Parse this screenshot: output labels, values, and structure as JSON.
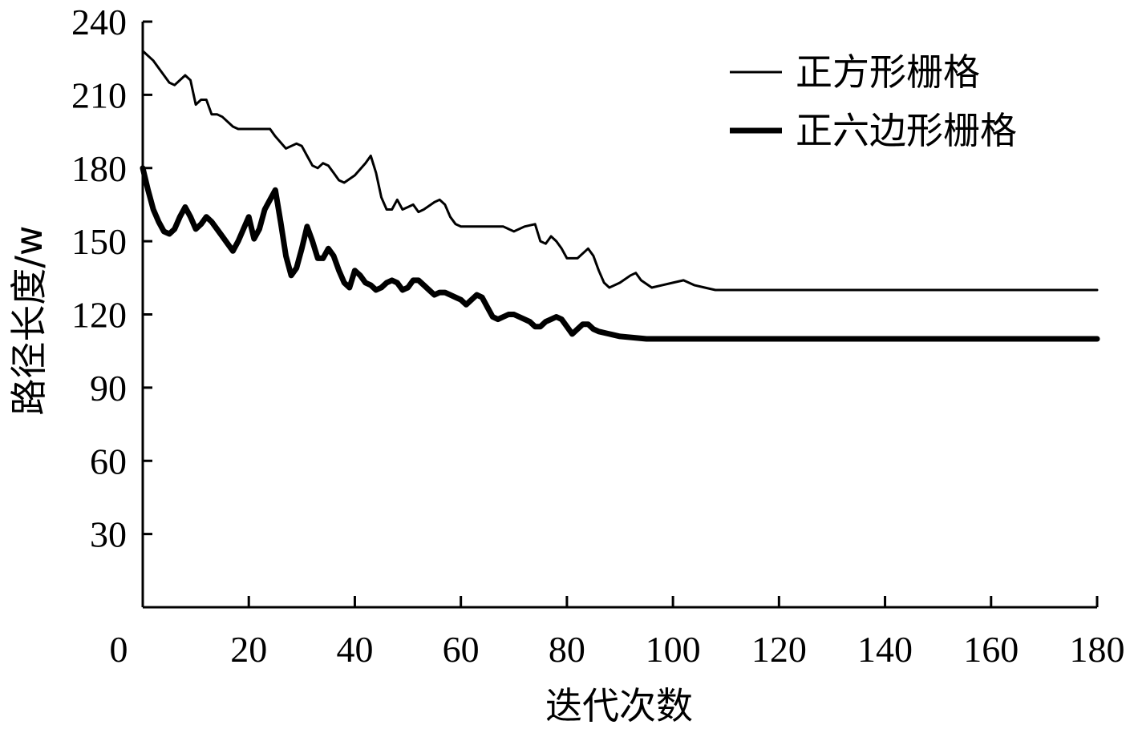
{
  "chart_data": {
    "type": "line",
    "title": "",
    "xlabel": "迭代次数",
    "ylabel": "路径长度/w",
    "xlim": [
      0,
      180
    ],
    "ylim": [
      0,
      240
    ],
    "xticks": [
      0,
      20,
      40,
      60,
      80,
      100,
      120,
      140,
      160,
      180
    ],
    "yticks": [
      30,
      60,
      90,
      120,
      150,
      180,
      210,
      240
    ],
    "xtick_labels": [
      "0",
      "20",
      "40",
      "60",
      "80",
      "100",
      "120",
      "140",
      "160",
      "180"
    ],
    "ytick_labels": [
      "30",
      "60",
      "90",
      "120",
      "150",
      "180",
      "210",
      "240"
    ],
    "grid": false,
    "legend_position": "top-right",
    "series": [
      {
        "name": "正方形栅格",
        "style": "thin",
        "color": "#000000",
        "points": [
          [
            0,
            228
          ],
          [
            2,
            224
          ],
          [
            3,
            221
          ],
          [
            5,
            215
          ],
          [
            6,
            214
          ],
          [
            8,
            218
          ],
          [
            9,
            216
          ],
          [
            10,
            206
          ],
          [
            11,
            208
          ],
          [
            12,
            208
          ],
          [
            13,
            202
          ],
          [
            14,
            202
          ],
          [
            15,
            201
          ],
          [
            17,
            197
          ],
          [
            18,
            196
          ],
          [
            24,
            196
          ],
          [
            25,
            193
          ],
          [
            27,
            188
          ],
          [
            28,
            189
          ],
          [
            29,
            190
          ],
          [
            30,
            189
          ],
          [
            31,
            185
          ],
          [
            32,
            181
          ],
          [
            33,
            180
          ],
          [
            34,
            182
          ],
          [
            35,
            181
          ],
          [
            36,
            178
          ],
          [
            37,
            175
          ],
          [
            38,
            174
          ],
          [
            40,
            177
          ],
          [
            42,
            182
          ],
          [
            43,
            185
          ],
          [
            44,
            178
          ],
          [
            45,
            168
          ],
          [
            46,
            163
          ],
          [
            47,
            163
          ],
          [
            48,
            167
          ],
          [
            49,
            163
          ],
          [
            50,
            164
          ],
          [
            51,
            165
          ],
          [
            52,
            162
          ],
          [
            53,
            163
          ],
          [
            55,
            166
          ],
          [
            56,
            167
          ],
          [
            57,
            165
          ],
          [
            58,
            160
          ],
          [
            59,
            157
          ],
          [
            60,
            156
          ],
          [
            68,
            156
          ],
          [
            70,
            154
          ],
          [
            72,
            156
          ],
          [
            74,
            157
          ],
          [
            75,
            150
          ],
          [
            76,
            149
          ],
          [
            77,
            152
          ],
          [
            78,
            150
          ],
          [
            79,
            147
          ],
          [
            80,
            143
          ],
          [
            82,
            143
          ],
          [
            84,
            147
          ],
          [
            85,
            144
          ],
          [
            86,
            138
          ],
          [
            87,
            133
          ],
          [
            88,
            131
          ],
          [
            90,
            133
          ],
          [
            92,
            136
          ],
          [
            93,
            137
          ],
          [
            94,
            134
          ],
          [
            96,
            131
          ],
          [
            98,
            132
          ],
          [
            100,
            133
          ],
          [
            102,
            134
          ],
          [
            104,
            132
          ],
          [
            106,
            131
          ],
          [
            108,
            130
          ],
          [
            180,
            130
          ]
        ]
      },
      {
        "name": "正六边形栅格",
        "style": "thick",
        "color": "#000000",
        "points": [
          [
            0,
            180
          ],
          [
            1,
            171
          ],
          [
            2,
            163
          ],
          [
            3,
            158
          ],
          [
            4,
            154
          ],
          [
            5,
            153
          ],
          [
            6,
            155
          ],
          [
            7,
            160
          ],
          [
            8,
            164
          ],
          [
            9,
            160
          ],
          [
            10,
            155
          ],
          [
            11,
            157
          ],
          [
            12,
            160
          ],
          [
            13,
            158
          ],
          [
            15,
            152
          ],
          [
            16,
            149
          ],
          [
            17,
            146
          ],
          [
            18,
            150
          ],
          [
            19,
            155
          ],
          [
            20,
            160
          ],
          [
            21,
            151
          ],
          [
            22,
            155
          ],
          [
            23,
            163
          ],
          [
            24,
            167
          ],
          [
            25,
            171
          ],
          [
            26,
            158
          ],
          [
            27,
            144
          ],
          [
            28,
            136
          ],
          [
            29,
            139
          ],
          [
            30,
            147
          ],
          [
            31,
            156
          ],
          [
            32,
            150
          ],
          [
            33,
            143
          ],
          [
            34,
            143
          ],
          [
            35,
            147
          ],
          [
            36,
            144
          ],
          [
            37,
            138
          ],
          [
            38,
            133
          ],
          [
            39,
            131
          ],
          [
            40,
            138
          ],
          [
            41,
            136
          ],
          [
            42,
            133
          ],
          [
            43,
            132
          ],
          [
            44,
            130
          ],
          [
            45,
            131
          ],
          [
            46,
            133
          ],
          [
            47,
            134
          ],
          [
            48,
            133
          ],
          [
            49,
            130
          ],
          [
            50,
            131
          ],
          [
            51,
            134
          ],
          [
            52,
            134
          ],
          [
            53,
            132
          ],
          [
            54,
            130
          ],
          [
            55,
            128
          ],
          [
            56,
            129
          ],
          [
            57,
            129
          ],
          [
            58,
            128
          ],
          [
            59,
            127
          ],
          [
            60,
            126
          ],
          [
            61,
            124
          ],
          [
            62,
            126
          ],
          [
            63,
            128
          ],
          [
            64,
            127
          ],
          [
            65,
            123
          ],
          [
            66,
            119
          ],
          [
            67,
            118
          ],
          [
            68,
            119
          ],
          [
            69,
            120
          ],
          [
            70,
            120
          ],
          [
            71,
            119
          ],
          [
            73,
            117
          ],
          [
            74,
            115
          ],
          [
            75,
            115
          ],
          [
            76,
            117
          ],
          [
            77,
            118
          ],
          [
            78,
            119
          ],
          [
            79,
            118
          ],
          [
            80,
            115
          ],
          [
            81,
            112
          ],
          [
            82,
            114
          ],
          [
            83,
            116
          ],
          [
            84,
            116
          ],
          [
            85,
            114
          ],
          [
            86,
            113
          ],
          [
            88,
            112
          ],
          [
            90,
            111
          ],
          [
            95,
            110
          ],
          [
            100,
            110
          ],
          [
            180,
            110
          ]
        ]
      }
    ]
  }
}
